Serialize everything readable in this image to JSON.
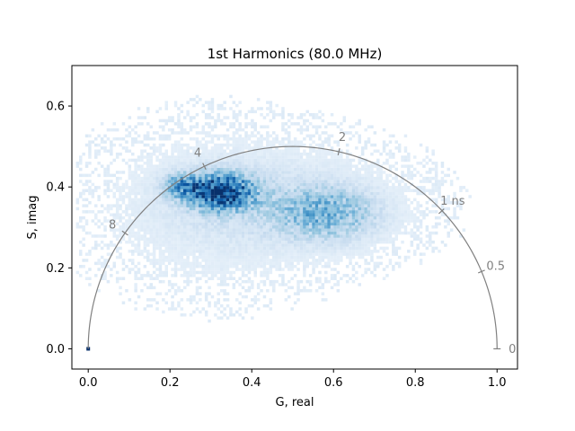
{
  "chart_data": {
    "type": "heatmap",
    "title": "1st Harmonics (80.0 MHz)",
    "xlabel": "G, real",
    "ylabel": "S, imag",
    "xlim": [
      -0.04,
      1.05
    ],
    "ylim": [
      -0.05,
      0.7
    ],
    "xticks": [
      0.0,
      0.2,
      0.4,
      0.6,
      0.8,
      1.0
    ],
    "xtick_labels": [
      "0.0",
      "0.2",
      "0.4",
      "0.6",
      "0.8",
      "1.0"
    ],
    "yticks": [
      0.0,
      0.2,
      0.4,
      0.6
    ],
    "ytick_labels": [
      "0.0",
      "0.2",
      "0.4",
      "0.6"
    ],
    "grid": false,
    "colormap": "Blues",
    "universal_circle": {
      "center": [
        0.5,
        0.0
      ],
      "radius": 0.5,
      "color": "#808080",
      "lifetime_labels": [
        {
          "text": "0",
          "g": 1.0,
          "s": 0.0
        },
        {
          "text": "0.5",
          "g": 0.962,
          "s": 0.191
        },
        {
          "text": "1 ns",
          "g": 0.864,
          "s": 0.34
        },
        {
          "text": "2",
          "g": 0.613,
          "s": 0.487
        },
        {
          "text": "4",
          "g": 0.284,
          "s": 0.451
        },
        {
          "text": "8",
          "g": 0.09,
          "s": 0.286
        }
      ]
    },
    "density_clusters": [
      {
        "g": 0.32,
        "s": 0.385,
        "sg": 0.055,
        "ss": 0.03,
        "weight": 1.0
      },
      {
        "g": 0.22,
        "s": 0.4,
        "sg": 0.03,
        "ss": 0.02,
        "weight": 0.45
      },
      {
        "g": 0.58,
        "s": 0.33,
        "sg": 0.085,
        "ss": 0.045,
        "weight": 0.42
      },
      {
        "g": 0.45,
        "s": 0.36,
        "sg": 0.18,
        "ss": 0.08,
        "weight": 0.12
      },
      {
        "g": 0.3,
        "s": 0.34,
        "sg": 0.16,
        "ss": 0.11,
        "weight": 0.07
      }
    ],
    "highlight_point": {
      "g": 0.0,
      "s": 0.0,
      "color": "#08306b"
    }
  }
}
